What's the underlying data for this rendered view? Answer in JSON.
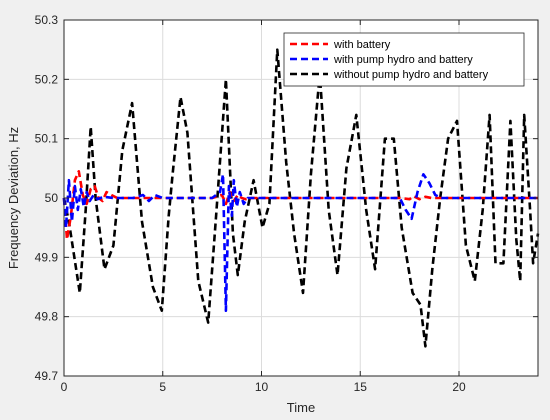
{
  "chart_data": {
    "type": "line",
    "xlabel": "Time",
    "ylabel": "Frequency Deviation, Hz",
    "xlim": [
      0,
      24
    ],
    "ylim": [
      49.7,
      50.3
    ],
    "xticks": [
      0,
      5,
      10,
      15,
      20
    ],
    "yticks": [
      49.7,
      49.8,
      49.9,
      50.0,
      50.1,
      50.2,
      50.3
    ],
    "ytick_labels": [
      "49.7",
      "49.8",
      "49.9",
      "50",
      "50.1",
      "50.2",
      "50.3"
    ],
    "xtick_labels": [
      "0",
      "5",
      "10",
      "15",
      "20"
    ],
    "grid": true,
    "legend_position": "top-right",
    "series": [
      {
        "name": "with battery",
        "color": "#ff0000",
        "x": [
          0,
          0.15,
          0.35,
          0.55,
          0.75,
          0.95,
          1.15,
          1.35,
          1.55,
          1.75,
          1.95,
          2.15,
          2.4,
          2.7,
          3.0,
          4.0,
          6.0,
          7.5,
          8.0,
          8.2,
          8.4,
          8.6,
          8.8,
          9.0,
          9.2,
          9.5,
          10.0,
          12.0,
          15.0,
          17.0,
          17.5,
          17.7,
          18.0,
          18.3,
          18.6,
          19.0,
          20.0,
          22.0,
          24.0
        ],
        "y": [
          50.0,
          49.93,
          49.97,
          50.03,
          50.045,
          50.005,
          49.99,
          50.015,
          50.02,
          50.0,
          49.995,
          50.01,
          50.005,
          50.0,
          50.0,
          50.0,
          50.0,
          50.0,
          50.005,
          49.99,
          50.01,
          49.995,
          50.005,
          50.0,
          49.998,
          50.0,
          50.0,
          50.0,
          50.0,
          50.0,
          49.998,
          50.003,
          49.998,
          50.002,
          50.0,
          50.0,
          50.0,
          50.0,
          50.0
        ]
      },
      {
        "name": "with pump hydro and battery",
        "color": "#0000ff",
        "x": [
          0,
          0.1,
          0.25,
          0.4,
          0.55,
          0.7,
          0.85,
          1.0,
          1.15,
          1.3,
          1.5,
          1.7,
          2.0,
          2.5,
          3.0,
          3.5,
          4.0,
          4.3,
          4.6,
          5.0,
          6.0,
          7.0,
          7.5,
          7.9,
          8.05,
          8.2,
          8.35,
          8.5,
          8.6,
          8.75,
          8.9,
          9.1,
          9.3,
          9.6,
          10.0,
          12.0,
          15.0,
          16.5,
          17.0,
          17.3,
          17.6,
          17.9,
          18.2,
          18.5,
          18.8,
          19.1,
          19.5,
          20.0,
          22.0,
          24.0
        ],
        "y": [
          50.0,
          49.95,
          50.03,
          49.96,
          50.02,
          49.98,
          50.015,
          49.985,
          50.01,
          49.995,
          50.005,
          49.998,
          50.002,
          50.0,
          50.0,
          50.0,
          50.005,
          49.995,
          50.005,
          50.0,
          50.0,
          50.0,
          50.0,
          50.01,
          50.04,
          49.81,
          50.02,
          49.97,
          50.03,
          49.985,
          50.01,
          49.99,
          50.0,
          50.0,
          50.0,
          50.0,
          50.0,
          50.0,
          50.0,
          49.98,
          49.965,
          50.01,
          50.04,
          50.025,
          50.005,
          50.0,
          50.0,
          50.0,
          50.0,
          50.0
        ]
      },
      {
        "name": "without pump hydro and battery",
        "color": "#000000",
        "x": [
          0,
          0.25,
          0.8,
          1.1,
          1.35,
          1.6,
          2.05,
          2.5,
          2.95,
          3.45,
          3.95,
          4.5,
          4.95,
          5.3,
          5.5,
          5.9,
          6.25,
          6.8,
          7.3,
          7.7,
          8.2,
          8.55,
          8.8,
          9.15,
          9.6,
          10.05,
          10.4,
          10.8,
          11.25,
          11.65,
          12.1,
          12.5,
          12.95,
          13.4,
          13.85,
          14.3,
          14.8,
          15.3,
          15.75,
          16.25,
          16.7,
          17.1,
          17.65,
          18.05,
          18.3,
          18.65,
          19.05,
          19.45,
          19.9,
          20.35,
          20.8,
          21.2,
          21.55,
          21.85,
          22.25,
          22.6,
          22.9,
          23.1,
          23.3,
          23.6,
          23.75,
          24.0
        ],
        "y": [
          50.0,
          49.96,
          49.84,
          49.98,
          50.12,
          50.0,
          49.88,
          49.92,
          50.08,
          50.16,
          49.96,
          49.85,
          49.81,
          49.97,
          50.04,
          50.17,
          50.11,
          49.86,
          49.79,
          49.97,
          50.2,
          49.94,
          49.87,
          49.96,
          50.03,
          49.95,
          49.99,
          50.25,
          50.06,
          49.94,
          49.84,
          50.04,
          50.21,
          49.98,
          49.87,
          50.05,
          50.14,
          49.98,
          49.88,
          50.1,
          50.1,
          49.95,
          49.84,
          49.82,
          49.75,
          49.88,
          50.0,
          50.1,
          50.13,
          49.92,
          49.86,
          49.98,
          50.14,
          49.89,
          49.89,
          50.13,
          49.93,
          49.86,
          50.14,
          49.98,
          49.89,
          49.94
        ]
      }
    ]
  }
}
